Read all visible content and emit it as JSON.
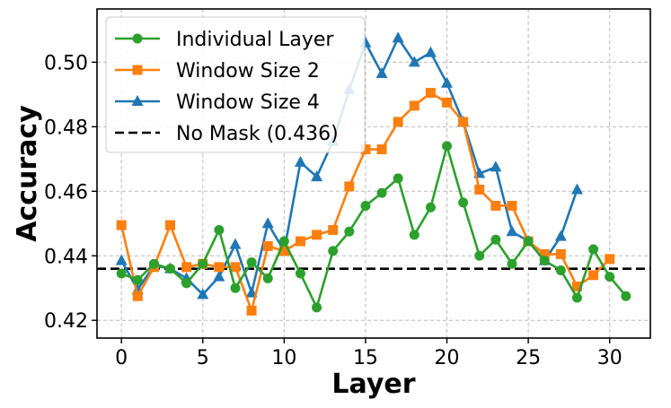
{
  "chart_data": {
    "type": "line",
    "xlabel": "Layer",
    "ylabel": "Accuracy",
    "xlim": [
      -1.5,
      32.5
    ],
    "ylim": [
      0.4145,
      0.5165
    ],
    "xticks": [
      0,
      5,
      10,
      15,
      20,
      25,
      30
    ],
    "yticks": [
      0.42,
      0.44,
      0.46,
      0.48,
      0.5
    ],
    "ytick_labels": [
      "0.42",
      "0.44",
      "0.46",
      "0.48",
      "0.50"
    ],
    "grid": true,
    "legend_position": "top-left",
    "series": [
      {
        "name": "Individual Layer",
        "color": "#2ca02c",
        "marker": "circle",
        "x": [
          0,
          1,
          2,
          3,
          4,
          5,
          6,
          7,
          8,
          9,
          10,
          11,
          12,
          13,
          14,
          15,
          16,
          17,
          18,
          19,
          20,
          21,
          22,
          23,
          24,
          25,
          26,
          27,
          28,
          29,
          30,
          31
        ],
        "values": [
          0.4345,
          0.4325,
          0.4375,
          0.436,
          0.4315,
          0.4375,
          0.448,
          0.43,
          0.438,
          0.433,
          0.4445,
          0.4345,
          0.424,
          0.4415,
          0.4475,
          0.4555,
          0.4595,
          0.464,
          0.4465,
          0.455,
          0.474,
          0.4565,
          0.44,
          0.445,
          0.4375,
          0.4445,
          0.4385,
          0.4355,
          0.427,
          0.442,
          0.4335,
          0.4275
        ]
      },
      {
        "name": "Window Size 2",
        "color": "#ff7f0e",
        "marker": "square",
        "x": [
          0,
          1,
          2,
          3,
          4,
          5,
          6,
          7,
          8,
          9,
          10,
          11,
          12,
          13,
          14,
          15,
          16,
          17,
          18,
          19,
          20,
          21,
          22,
          23,
          24,
          25,
          26,
          27,
          28,
          29,
          30
        ],
        "values": [
          0.4495,
          0.4275,
          0.4365,
          0.4495,
          0.4365,
          0.4375,
          0.4365,
          0.4365,
          0.423,
          0.443,
          0.4415,
          0.4445,
          0.4465,
          0.448,
          0.4615,
          0.473,
          0.473,
          0.4815,
          0.4865,
          0.4905,
          0.4875,
          0.4815,
          0.4605,
          0.4555,
          0.4555,
          0.4445,
          0.4405,
          0.4405,
          0.4305,
          0.434,
          0.439
        ]
      },
      {
        "name": "Window Size 4",
        "color": "#1f77b4",
        "marker": "triangle",
        "x": [
          0,
          1,
          2,
          3,
          4,
          5,
          6,
          7,
          8,
          9,
          10,
          11,
          12,
          13,
          14,
          15,
          16,
          17,
          18,
          19,
          20,
          21,
          22,
          23,
          24,
          25,
          26,
          27,
          28
        ],
        "values": [
          0.4385,
          0.4295,
          0.437,
          0.436,
          0.433,
          0.428,
          0.4335,
          0.4435,
          0.4285,
          0.45,
          0.4415,
          0.469,
          0.4645,
          0.4755,
          0.4915,
          0.506,
          0.4965,
          0.5075,
          0.5,
          0.503,
          0.4935,
          0.4815,
          0.4655,
          0.4675,
          0.4475,
          0.4445,
          0.4385,
          0.446,
          0.4605
        ]
      }
    ],
    "reference_line": {
      "name": "No Mask (0.436)",
      "value": 0.436,
      "color": "#000000",
      "style": "dashed"
    }
  }
}
